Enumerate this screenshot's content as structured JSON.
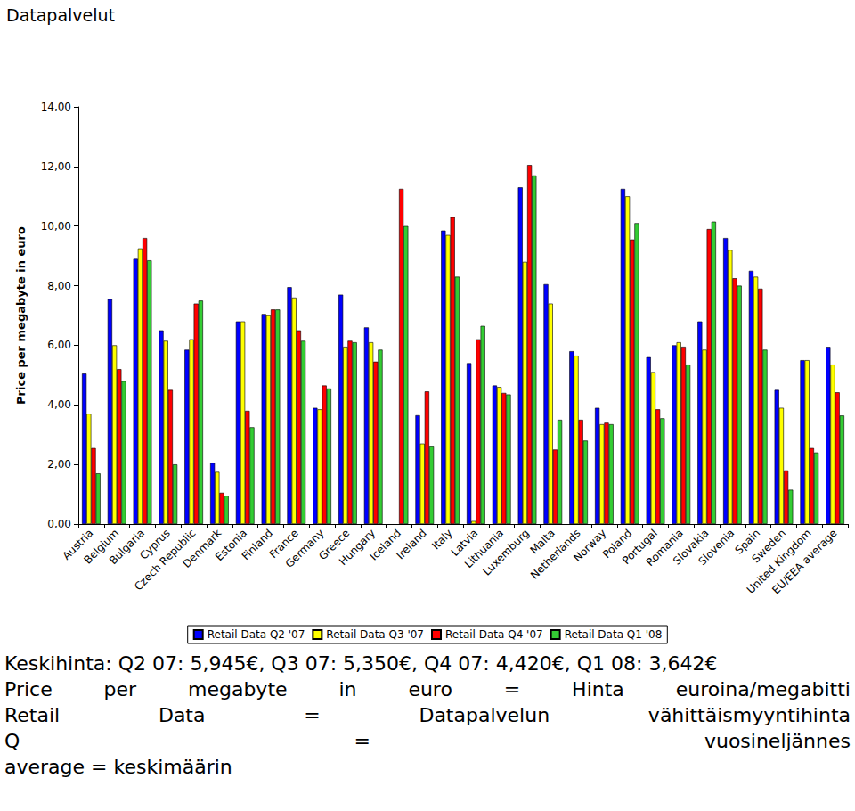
{
  "chart_data": {
    "type": "bar",
    "title": "Datapalvelut",
    "y_label": "Price per megabyte in euro",
    "categories": [
      "Austria",
      "Belgium",
      "Bulgaria",
      "Cyprus",
      "Czech Republic",
      "Denmark",
      "Estonia",
      "Finland",
      "France",
      "Germany",
      "Greece",
      "Hungary",
      "Iceland",
      "Ireland",
      "Italy",
      "Latvia",
      "Lithuania",
      "Luxemburg",
      "Malta",
      "Netherlands",
      "Norway",
      "Poland",
      "Portugal",
      "Romania",
      "Slovakia",
      "Slovenia",
      "Spain",
      "Sweden",
      "United Kingdom",
      "EU/EEA average"
    ],
    "series": [
      {
        "name": "Retail Data Q2 '07",
        "color": "#0000ff",
        "values": [
          5.05,
          7.55,
          8.9,
          6.5,
          5.85,
          2.05,
          6.8,
          7.05,
          7.95,
          3.9,
          7.7,
          6.6,
          null,
          3.65,
          9.85,
          5.4,
          4.65,
          11.3,
          8.05,
          5.8,
          3.9,
          11.25,
          5.6,
          6.0,
          6.8,
          9.6,
          8.5,
          4.5,
          5.5,
          5.945
        ]
      },
      {
        "name": "Retail Data Q3 '07",
        "color": "#ffff00",
        "values": [
          3.7,
          6.0,
          9.25,
          6.15,
          6.2,
          1.75,
          6.8,
          7.0,
          7.6,
          3.85,
          5.95,
          6.1,
          null,
          2.7,
          9.7,
          0.1,
          4.6,
          8.8,
          7.4,
          5.65,
          3.35,
          11.0,
          5.1,
          6.1,
          5.85,
          9.2,
          8.3,
          3.9,
          5.5,
          5.35
        ]
      },
      {
        "name": "Retail Data Q4 '07",
        "color": "#ff0000",
        "values": [
          2.55,
          5.2,
          9.6,
          4.5,
          7.4,
          1.05,
          3.8,
          7.2,
          6.5,
          4.65,
          6.15,
          5.45,
          11.25,
          4.45,
          10.3,
          6.2,
          4.4,
          12.05,
          2.5,
          3.5,
          3.4,
          9.55,
          3.85,
          5.95,
          9.9,
          8.25,
          7.9,
          1.8,
          2.55,
          4.42
        ]
      },
      {
        "name": "Retail Data Q1 '08",
        "color": "#33cc33",
        "values": [
          1.7,
          4.8,
          8.85,
          2.0,
          7.5,
          0.95,
          3.25,
          7.2,
          6.15,
          4.55,
          6.1,
          5.85,
          10.0,
          2.6,
          8.3,
          6.65,
          4.35,
          11.7,
          3.5,
          2.8,
          3.35,
          10.1,
          3.55,
          5.35,
          10.15,
          8.0,
          5.85,
          1.15,
          2.4,
          3.642
        ]
      }
    ],
    "ylim": [
      0,
      14
    ],
    "yticks": [
      {
        "value": 0,
        "label": "0,00"
      },
      {
        "value": 2,
        "label": "2,00"
      },
      {
        "value": 4,
        "label": "4,00"
      },
      {
        "value": 6,
        "label": "6,00"
      },
      {
        "value": 8,
        "label": "8,00"
      },
      {
        "value": 10,
        "label": "10,00"
      },
      {
        "value": 12,
        "label": "12,00"
      },
      {
        "value": 14,
        "label": "14,00"
      }
    ],
    "grid": false,
    "legend": "bottom",
    "annotations": [
      "Keskihinta: Q2 07: 5,945€, Q3 07: 5,350€, Q4 07: 4,420€, Q1 08: 3,642€",
      "Price per megabyte in euro = Hinta euroina/megabitti",
      "Retail Data = Datapalvelun vähittäismyyntihinta",
      "Q = vuosineljännes",
      "average = keskimäärin"
    ]
  }
}
